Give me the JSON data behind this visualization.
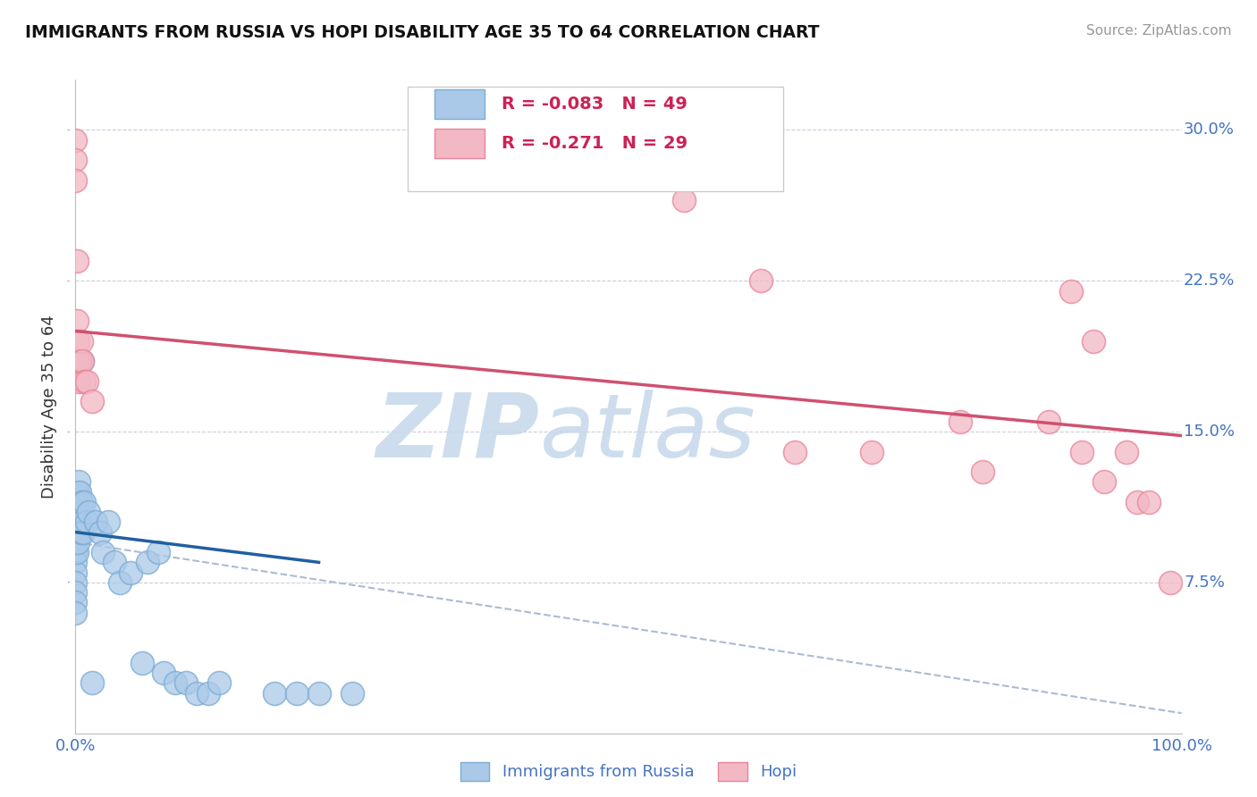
{
  "title": "IMMIGRANTS FROM RUSSIA VS HOPI DISABILITY AGE 35 TO 64 CORRELATION CHART",
  "source_text": "Source: ZipAtlas.com",
  "ylabel": "Disability Age 35 to 64",
  "xlim": [
    0.0,
    1.0
  ],
  "ylim": [
    0.0,
    0.325
  ],
  "legend_r1": "R = -0.083",
  "legend_n1": "N = 49",
  "legend_r2": "R = -0.271",
  "legend_n2": "N = 29",
  "legend_label1": "Immigrants from Russia",
  "legend_label2": "Hopi",
  "blue_fill": "#aac9e8",
  "blue_edge": "#7aabd4",
  "pink_fill": "#f2b8c4",
  "pink_edge": "#e8849a",
  "blue_line_color": "#2060a0",
  "pink_line_color": "#d05070",
  "dashed_line_color": "#aabbd4",
  "watermark_color": "#c5d8ea",
  "blue_scatter_x": [
    0.0,
    0.0,
    0.0,
    0.0,
    0.0,
    0.0,
    0.0,
    0.0,
    0.0,
    0.0,
    0.001,
    0.001,
    0.001,
    0.001,
    0.001,
    0.002,
    0.002,
    0.002,
    0.003,
    0.003,
    0.004,
    0.005,
    0.005,
    0.006,
    0.007,
    0.008,
    0.01,
    0.012,
    0.015,
    0.018,
    0.022,
    0.025,
    0.03,
    0.035,
    0.04,
    0.05,
    0.06,
    0.065,
    0.075,
    0.08,
    0.09,
    0.1,
    0.11,
    0.12,
    0.13,
    0.18,
    0.2,
    0.22,
    0.25
  ],
  "blue_scatter_y": [
    0.105,
    0.1,
    0.095,
    0.09,
    0.085,
    0.08,
    0.075,
    0.07,
    0.065,
    0.06,
    0.115,
    0.11,
    0.105,
    0.1,
    0.09,
    0.12,
    0.11,
    0.095,
    0.125,
    0.105,
    0.12,
    0.115,
    0.1,
    0.185,
    0.1,
    0.115,
    0.105,
    0.11,
    0.025,
    0.105,
    0.1,
    0.09,
    0.105,
    0.085,
    0.075,
    0.08,
    0.035,
    0.085,
    0.09,
    0.03,
    0.025,
    0.025,
    0.02,
    0.02,
    0.025,
    0.02,
    0.02,
    0.02,
    0.02
  ],
  "pink_scatter_x": [
    0.0,
    0.0,
    0.0,
    0.001,
    0.001,
    0.002,
    0.002,
    0.003,
    0.004,
    0.005,
    0.006,
    0.008,
    0.01,
    0.015,
    0.55,
    0.62,
    0.65,
    0.72,
    0.8,
    0.82,
    0.88,
    0.9,
    0.91,
    0.92,
    0.93,
    0.95,
    0.96,
    0.97,
    0.99
  ],
  "pink_scatter_y": [
    0.295,
    0.285,
    0.275,
    0.235,
    0.205,
    0.195,
    0.185,
    0.175,
    0.185,
    0.195,
    0.185,
    0.175,
    0.175,
    0.165,
    0.265,
    0.225,
    0.14,
    0.14,
    0.155,
    0.13,
    0.155,
    0.22,
    0.14,
    0.195,
    0.125,
    0.14,
    0.115,
    0.115,
    0.075
  ],
  "blue_line_x0": 0.0,
  "blue_line_x1": 0.22,
  "blue_line_y0": 0.1,
  "blue_line_y1": 0.085,
  "pink_line_x0": 0.0,
  "pink_line_x1": 1.0,
  "pink_line_y0": 0.2,
  "pink_line_y1": 0.148,
  "dash_line_x0": 0.0,
  "dash_line_x1": 1.0,
  "dash_line_y0": 0.095,
  "dash_line_y1": 0.01
}
